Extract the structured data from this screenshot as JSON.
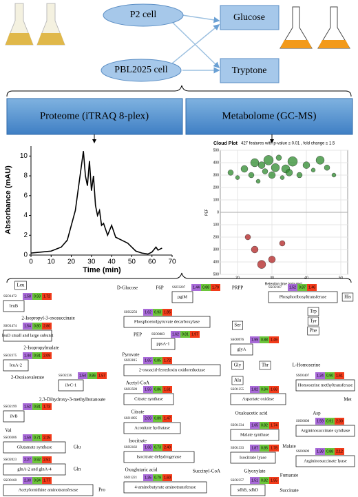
{
  "header": {
    "cells": [
      "P2 cell",
      "PBL2025 cell"
    ],
    "media": [
      "Glucose",
      "Tryptone"
    ]
  },
  "omics": [
    "Proteome (iTRAQ 8-plex)",
    "Metabolome (GC-MS)"
  ],
  "chromatogram": {
    "type": "line",
    "xlabel": "Time (min)",
    "ylabel": "Absorbance (mAU)",
    "color": "#000000",
    "x": [
      0,
      5,
      10,
      15,
      18,
      20,
      22,
      23,
      24,
      25,
      26,
      27,
      28,
      29,
      30,
      31,
      32,
      33,
      34,
      35,
      36,
      38,
      40,
      42,
      45,
      48,
      50,
      52,
      55,
      58,
      60,
      62,
      63,
      65
    ],
    "values": [
      0.2,
      0.3,
      0.4,
      0.8,
      1.5,
      3,
      4.5,
      6,
      7.5,
      9,
      10.5,
      8,
      7,
      9.5,
      6.5,
      8,
      5,
      4,
      4.5,
      3,
      3.2,
      2,
      3,
      1.8,
      1.5,
      1.2,
      0.8,
      0.4,
      0.2,
      0.1,
      0.3,
      0.8,
      0.5,
      0.7
    ],
    "xlim": [
      0,
      70
    ],
    "ylim": [
      0,
      11
    ],
    "xticks": [
      0,
      10,
      20,
      30,
      40,
      50,
      60,
      70
    ],
    "yticks": [
      0,
      2,
      4,
      6,
      8,
      10
    ]
  },
  "cloud": {
    "type": "scatter",
    "title": "Cloud Plot",
    "subtitle": "427 features with p-value ≤ 0.01 , fold change ≥ 1.5",
    "xlabel": "Retention time (minutes)",
    "ylabel": "PEF",
    "xlim": [
      15,
      52
    ],
    "ylim": [
      -500,
      500
    ],
    "xticks": [
      20,
      30,
      40,
      50
    ],
    "yticks": [
      {
        "value": -500,
        "label": "500"
      },
      {
        "value": -400,
        "label": "400"
      },
      {
        "value": -300,
        "label": "300"
      },
      {
        "value": -200,
        "label": "200"
      },
      {
        "value": -100,
        "label": "100"
      },
      0,
      100,
      200,
      300,
      400,
      500
    ],
    "up_color": "#2e8b2e",
    "down_color": "#b22222",
    "x": [
      18,
      20,
      22,
      24,
      25,
      26,
      27,
      28,
      29,
      30,
      31,
      32,
      33,
      34,
      35,
      36,
      38,
      40,
      42,
      44,
      46,
      48,
      23,
      25,
      27,
      30,
      33
    ],
    "values": [
      320,
      280,
      350,
      300,
      400,
      250,
      380,
      330,
      420,
      300,
      360,
      440,
      280,
      350,
      320,
      410,
      300,
      380,
      340,
      420,
      360,
      300,
      -200,
      -300,
      -420,
      -380,
      -250
    ],
    "sizes": [
      4,
      3,
      5,
      4,
      6,
      3,
      5,
      4,
      7,
      5,
      6,
      4,
      3,
      6,
      5,
      7,
      4,
      5,
      3,
      6,
      4,
      3,
      4,
      5,
      6,
      5,
      4
    ]
  },
  "pathway": {
    "cell_colors": [
      "#a86ad8",
      "#6cc53a",
      "#f23b1a"
    ],
    "metabolites": [
      "Leu",
      "2-Isopropyl-3-oxosuccinate",
      "2-Isopropylmalate",
      "2-Oxoisovalerate",
      "2,3-Dihydroxy-3-methylbutanoate",
      "Val",
      "Glu",
      "Gln",
      "Pro",
      "D-Glucose",
      "F6P",
      "PEP",
      "Pyruvate",
      "Acetyl-CoA",
      "Citrate",
      "Isocitrate",
      "Oxoglutaric acid",
      "Succinyl-CoA",
      "PRPP",
      "His",
      "Trp",
      "Tyr",
      "Phe",
      "Ser",
      "Gly",
      "Thr",
      "L-Homoserine",
      "Met",
      "Ala",
      "Oxaloacetic acid",
      "Asp",
      "Glyoxylate",
      "Malate",
      "Fumarate",
      "Succinate"
    ],
    "enzymes": [
      {
        "id": "SSO1472",
        "label": "leuB",
        "cells": [
          "1.58",
          "0.93",
          "1.72"
        ]
      },
      {
        "id": "SSO1474",
        "label": "leuD small and large subunit",
        "cells": [
          "1.54",
          "0.80",
          "2.80"
        ]
      },
      {
        "id": "SSO2375",
        "label": "leuA-2",
        "cells": [
          "1.44",
          "0.91",
          "2.09"
        ]
      },
      {
        "id": "SSO2236",
        "label": "ilvC-1",
        "cells": [
          "1.54",
          "0.86",
          "1.57"
        ]
      },
      {
        "id": "SSO2199",
        "label": "ilvB",
        "cells": [
          "1.52",
          "0.81",
          "1.73"
        ]
      },
      {
        "id": "SSO0306",
        "label": "Glutamate synthase",
        "cells": [
          "1.59",
          "0.71",
          "2.15"
        ]
      },
      {
        "id": "SSO2023",
        "label": "glnA-2 and glnA-4",
        "cells": [
          "2.27",
          "0.92",
          "2.51"
        ]
      },
      {
        "id": "SSO0160",
        "label": "Acetylornithine aminotransferase",
        "cells": [
          "2.30",
          "0.84",
          "1.77"
        ]
      },
      {
        "id": "SSO3207",
        "label": "pgiM",
        "cells": [
          "1.44",
          "0.88",
          "1.79"
        ]
      },
      {
        "id": "SSO2256",
        "label": "Phosphoenolpyruvate decarboxylase",
        "cells": [
          "1.62",
          "0.93",
          "1.85"
        ]
      },
      {
        "id": "SSO0883",
        "label": "ppsA-1",
        "cells": [
          "1.62",
          "0.81",
          "1.97"
        ]
      },
      {
        "id": "SSO2815",
        "label": "2-oxoacid-ferredoxin oxidoreductase",
        "cells": [
          "1.65",
          "0.85",
          "1.72"
        ]
      },
      {
        "id": "SSO2589",
        "label": "Citrate synthase",
        "cells": [
          "1.59",
          "0.86",
          "1.61"
        ]
      },
      {
        "id": "SSO1095",
        "label": "Aconitate hydratase",
        "cells": [
          "2.09",
          "0.89",
          "1.47"
        ]
      },
      {
        "id": "SSO2182",
        "label": "Isocitrate dehydrogenase",
        "cells": [
          "1.68",
          "0.73",
          "2.40"
        ]
      },
      {
        "id": "SSO1221",
        "label": "4-aminobutyrate aminotransferase",
        "cells": [
          "1.35",
          "0.79",
          "1.60"
        ]
      },
      {
        "id": "SSO2187",
        "label": "Phosphoribosyltransferase",
        "cells": [
          "1.52",
          "0.87",
          "1.46"
        ]
      },
      {
        "id": "SSO0976",
        "label": "glyA",
        "cells": [
          "1.99",
          "0.88",
          "1.49"
        ]
      },
      {
        "id": "SSO0407",
        "label": "Homoserine methyltransferase",
        "cells": [
          "1.34",
          "0.90",
          "1.61"
        ]
      },
      {
        "id": "SSO1255",
        "label": "Aspartate oxidase",
        "cells": [
          "1.82",
          "0.84",
          "1.68"
        ]
      },
      {
        "id": "SSO0608",
        "label": "Argininosuccinate synthase",
        "cells": [
          "1.59",
          "0.91",
          "2.00"
        ]
      },
      {
        "id": "SSO1334",
        "label": "Malate synthase",
        "cells": [
          "1.65",
          "0.82",
          "1.74"
        ]
      },
      {
        "id": "SSO1333",
        "label": "Isocitrate lyase",
        "cells": [
          "1.87",
          "0.85",
          "1.78"
        ]
      },
      {
        "id": "SSO0609",
        "label": "Argininosuccinate lyase",
        "cells": [
          "1.38",
          "0.88",
          "2.12"
        ]
      },
      {
        "id": "SSO2357",
        "label": "sdhB, sdhD",
        "cells": [
          "1.51",
          "0.82",
          "1.55"
        ]
      }
    ]
  }
}
